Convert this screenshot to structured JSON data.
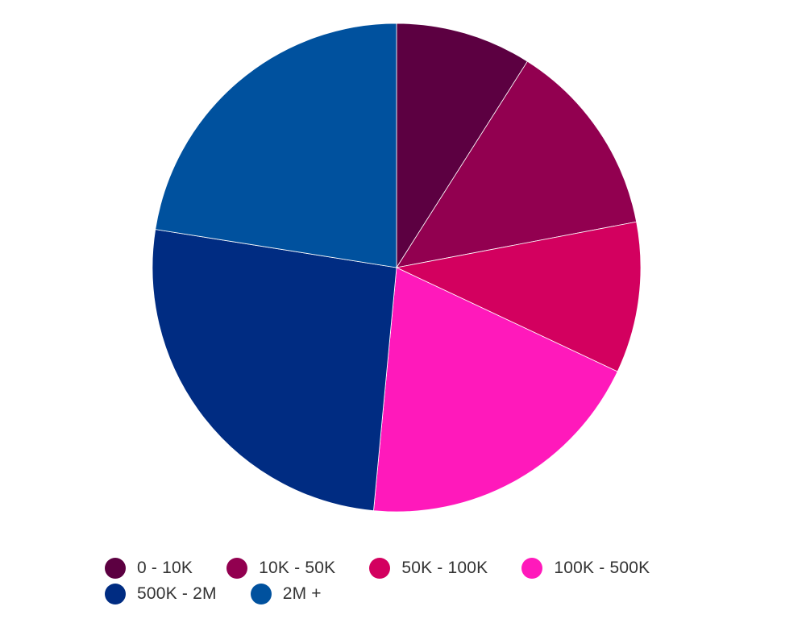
{
  "chart_data": {
    "type": "pie",
    "title": "",
    "start_angle_deg": 0,
    "direction": "clockwise",
    "slices": [
      {
        "label": "0 - 10K",
        "value": 9.0,
        "color": "#5C0041"
      },
      {
        "label": "10K - 50K",
        "value": 13.0,
        "color": "#920050"
      },
      {
        "label": "50K - 100K",
        "value": 10.0,
        "color": "#D3005F"
      },
      {
        "label": "100K - 500K",
        "value": 19.5,
        "color": "#FF19BB"
      },
      {
        "label": "500K - 2M",
        "value": 26.0,
        "color": "#002C82"
      },
      {
        "label": "2M +",
        "value": 22.5,
        "color": "#00519E"
      }
    ],
    "legend": {
      "position": "bottom"
    }
  }
}
